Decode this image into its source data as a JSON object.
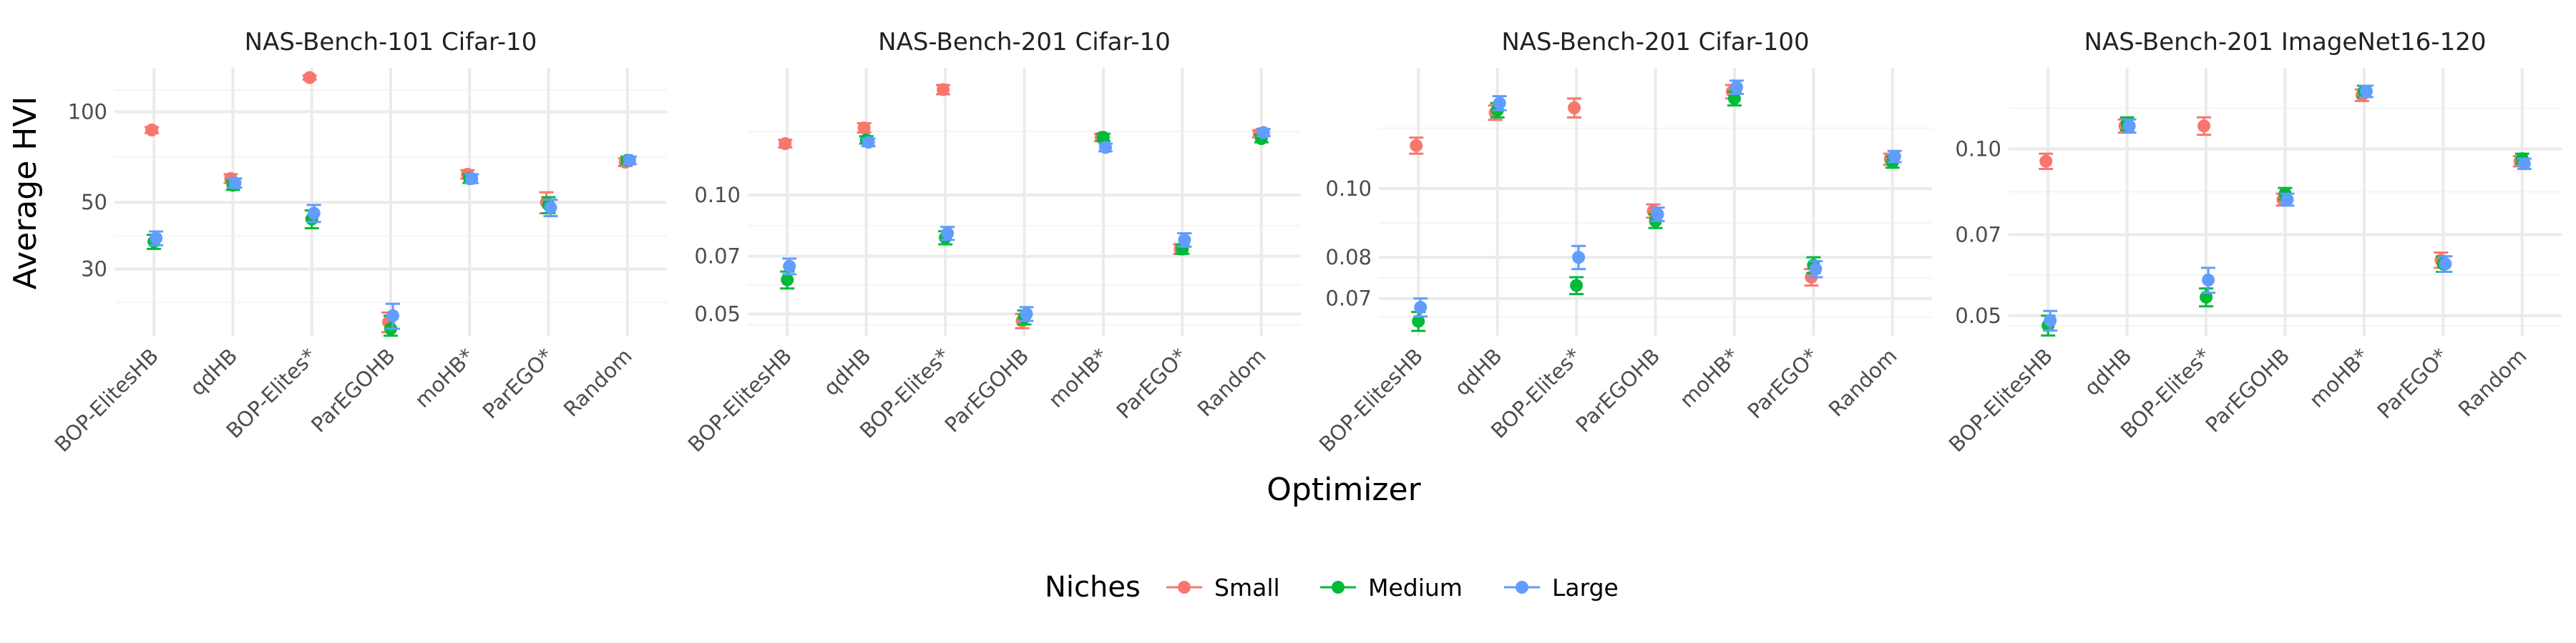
{
  "chart_data": [
    {
      "type": "scatter",
      "title": "NAS-Bench-101 Cifar-10",
      "categories": [
        "BOP-ElitesHB",
        "qdHB",
        "BOP-Elites*",
        "ParEGOHB",
        "moHB*",
        "ParEGO*",
        "Random"
      ],
      "y_scale": "log",
      "ylim": [
        18,
        140
      ],
      "yticks": [
        30,
        50,
        100
      ],
      "ytick_labels": [
        "30",
        "50",
        "100"
      ],
      "series": [
        {
          "name": "Small",
          "values": [
            87,
            60,
            130,
            20,
            62,
            50,
            68
          ],
          "err": [
            2,
            2,
            2,
            1.5,
            2,
            4,
            2
          ]
        },
        {
          "name": "Medium",
          "values": [
            37,
            57,
            44,
            19,
            60,
            49,
            69
          ],
          "err": [
            2,
            2,
            3,
            2,
            2,
            3,
            2
          ]
        },
        {
          "name": "Large",
          "values": [
            38,
            58,
            46,
            21,
            60,
            48,
            69
          ],
          "err": [
            2,
            2,
            3,
            2,
            2,
            3,
            2
          ]
        }
      ]
    },
    {
      "type": "scatter",
      "title": "NAS-Bench-201 Cifar-10",
      "categories": [
        "BOP-ElitesHB",
        "qdHB",
        "BOP-Elites*",
        "ParEGOHB",
        "moHB*",
        "ParEGO*",
        "Random"
      ],
      "y_scale": "log",
      "ylim": [
        0.044,
        0.21
      ],
      "yticks": [
        0.05,
        0.07,
        0.1
      ],
      "ytick_labels": [
        "0.05",
        "0.07",
        "0.10"
      ],
      "series": [
        {
          "name": "Small",
          "values": [
            0.135,
            0.148,
            0.185,
            0.048,
            0.14,
            0.073,
            0.143
          ],
          "err": [
            0.003,
            0.004,
            0.005,
            0.002,
            0.003,
            0.002,
            0.003
          ]
        },
        {
          "name": "Medium",
          "values": [
            0.061,
            0.138,
            0.078,
            0.049,
            0.14,
            0.073,
            0.139
          ],
          "err": [
            0.003,
            0.003,
            0.003,
            0.002,
            0.003,
            0.002,
            0.003
          ]
        },
        {
          "name": "Large",
          "values": [
            0.066,
            0.136,
            0.08,
            0.05,
            0.132,
            0.077,
            0.144
          ],
          "err": [
            0.003,
            0.003,
            0.003,
            0.002,
            0.003,
            0.003,
            0.003
          ]
        }
      ]
    },
    {
      "type": "scatter",
      "title": "NAS-Bench-201 Cifar-100",
      "categories": [
        "BOP-ElitesHB",
        "qdHB",
        "BOP-Elites*",
        "ParEGOHB",
        "moHB*",
        "ParEGO*",
        "Random"
      ],
      "y_scale": "log",
      "ylim": [
        0.062,
        0.148
      ],
      "yticks": [
        0.07,
        0.08,
        0.1
      ],
      "ytick_labels": [
        "0.07",
        "0.08",
        "0.10"
      ],
      "series": [
        {
          "name": "Small",
          "values": [
            0.115,
            0.128,
            0.13,
            0.093,
            0.137,
            0.075,
            0.11
          ],
          "err": [
            0.003,
            0.003,
            0.004,
            0.002,
            0.003,
            0.002,
            0.002
          ]
        },
        {
          "name": "Medium",
          "values": [
            0.065,
            0.129,
            0.073,
            0.09,
            0.134,
            0.078,
            0.109
          ],
          "err": [
            0.002,
            0.003,
            0.002,
            0.002,
            0.003,
            0.002,
            0.002
          ]
        },
        {
          "name": "Large",
          "values": [
            0.068,
            0.132,
            0.08,
            0.092,
            0.139,
            0.077,
            0.111
          ],
          "err": [
            0.002,
            0.003,
            0.003,
            0.002,
            0.003,
            0.002,
            0.002
          ]
        }
      ]
    },
    {
      "type": "scatter",
      "title": "NAS-Bench-201 ImageNet16-120",
      "categories": [
        "BOP-ElitesHB",
        "qdHB",
        "BOP-Elites*",
        "ParEGOHB",
        "moHB*",
        "ParEGO*",
        "Random"
      ],
      "y_scale": "log",
      "ylim": [
        0.046,
        0.14
      ],
      "yticks": [
        0.05,
        0.07,
        0.1
      ],
      "ytick_labels": [
        "0.05",
        "0.07",
        "0.10"
      ],
      "series": [
        {
          "name": "Small",
          "values": [
            0.095,
            0.11,
            0.11,
            0.081,
            0.125,
            0.063,
            0.095
          ],
          "err": [
            0.003,
            0.003,
            0.004,
            0.002,
            0.003,
            0.002,
            0.002
          ]
        },
        {
          "name": "Medium",
          "values": [
            0.048,
            0.111,
            0.054,
            0.083,
            0.127,
            0.062,
            0.096
          ],
          "err": [
            0.002,
            0.003,
            0.002,
            0.002,
            0.003,
            0.002,
            0.002
          ]
        },
        {
          "name": "Large",
          "values": [
            0.049,
            0.11,
            0.058,
            0.081,
            0.127,
            0.062,
            0.094
          ],
          "err": [
            0.002,
            0.003,
            0.003,
            0.002,
            0.003,
            0.002,
            0.002
          ]
        }
      ]
    }
  ],
  "axis_titles": {
    "x": "Optimizer",
    "y": "Average HVI"
  },
  "legend": {
    "title": "Niches",
    "position": "bottom",
    "items": [
      {
        "label": "Small",
        "color": "#F8766D"
      },
      {
        "label": "Medium",
        "color": "#00BA38"
      },
      {
        "label": "Large",
        "color": "#619CFF"
      }
    ]
  }
}
